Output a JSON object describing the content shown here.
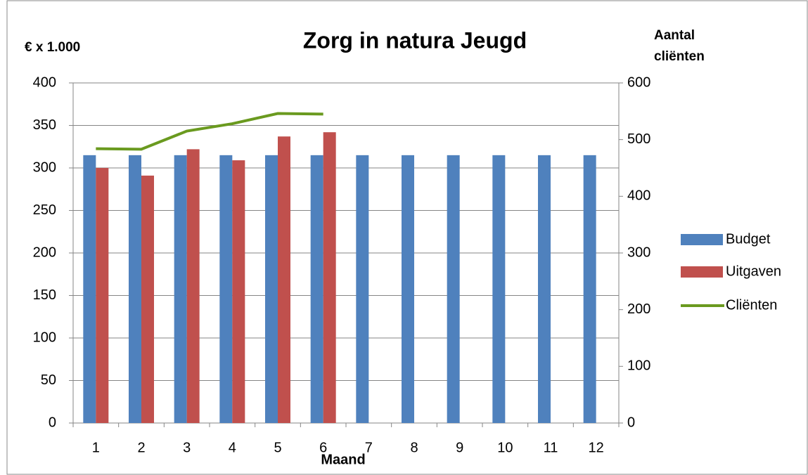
{
  "chart_data": {
    "type": "bar_line",
    "title": "Zorg in natura Jeugd",
    "y_label": "€ x 1.000",
    "y2_label": "Aantal cliënten",
    "x_label": "Maand",
    "categories": [
      1,
      2,
      3,
      4,
      5,
      6,
      7,
      8,
      9,
      10,
      11,
      12
    ],
    "series": [
      {
        "name": "Budget",
        "type": "bar",
        "color": "#4f81bd",
        "values": [
          315,
          315,
          315,
          315,
          315,
          315,
          315,
          315,
          315,
          315,
          315,
          315
        ]
      },
      {
        "name": "Uitgaven",
        "type": "bar",
        "color": "#c0504d",
        "values": [
          300,
          291,
          322,
          309,
          337,
          342,
          null,
          null,
          null,
          null,
          null,
          null
        ]
      },
      {
        "name": "Cliënten",
        "type": "line",
        "axis": "y2",
        "color": "#6a9a1f",
        "values": [
          484,
          483,
          515,
          528,
          546,
          545,
          null,
          null,
          null,
          null,
          null,
          null
        ]
      }
    ],
    "ylim": [
      0,
      400
    ],
    "yticks": [
      0,
      50,
      100,
      150,
      200,
      250,
      300,
      350,
      400
    ],
    "y2lim": [
      0,
      600
    ],
    "y2ticks": [
      0,
      100,
      200,
      300,
      400,
      500,
      600
    ],
    "grid": true,
    "legend": "right"
  }
}
